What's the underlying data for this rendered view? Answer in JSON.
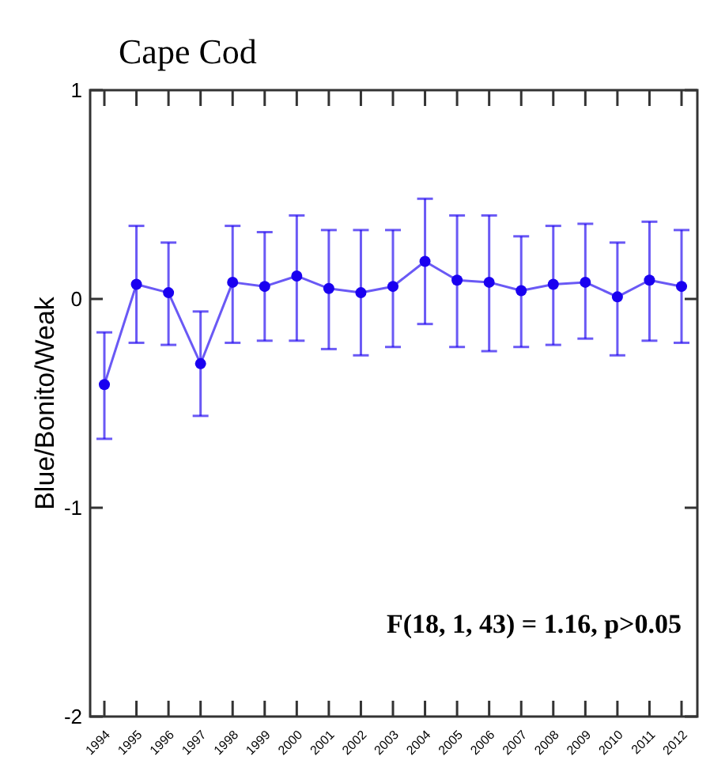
{
  "chart_data": {
    "type": "line",
    "title": "Cape Cod",
    "ylabel": "Blue/Bonito/Weak",
    "categories": [
      "1994",
      "1995",
      "1996",
      "1997",
      "1998",
      "1999",
      "2000",
      "2001",
      "2002",
      "2003",
      "2004",
      "2005",
      "2006",
      "2007",
      "2008",
      "2009",
      "2010",
      "2011",
      "2012"
    ],
    "series": [
      {
        "color": "#1a00f0",
        "values": [
          -0.41,
          0.07,
          0.03,
          -0.31,
          0.08,
          0.06,
          0.11,
          0.05,
          0.03,
          0.06,
          0.18,
          0.09,
          0.08,
          0.04,
          0.07,
          0.08,
          0.01,
          0.09,
          0.06
        ],
        "errors": [
          [
            -0.67,
            -0.16
          ],
          [
            -0.21,
            0.35
          ],
          [
            -0.22,
            0.27
          ],
          [
            -0.56,
            -0.06
          ],
          [
            -0.21,
            0.35
          ],
          [
            -0.2,
            0.32
          ],
          [
            -0.2,
            0.4
          ],
          [
            -0.24,
            0.33
          ],
          [
            -0.27,
            0.33
          ],
          [
            -0.23,
            0.33
          ],
          [
            -0.12,
            0.48
          ],
          [
            -0.23,
            0.4
          ],
          [
            -0.25,
            0.4
          ],
          [
            -0.23,
            0.3
          ],
          [
            -0.22,
            0.35
          ],
          [
            -0.19,
            0.36
          ],
          [
            -0.27,
            0.27
          ],
          [
            -0.2,
            0.37
          ],
          [
            -0.21,
            0.33
          ]
        ]
      }
    ],
    "ylim": [
      -2,
      1
    ],
    "yticks": [
      -2,
      -1,
      0,
      1
    ],
    "marker": "circle",
    "line_style": "solid",
    "grid": false,
    "annotations": [
      "F(18, 1, 43) = 1.16, p>0.05"
    ]
  }
}
